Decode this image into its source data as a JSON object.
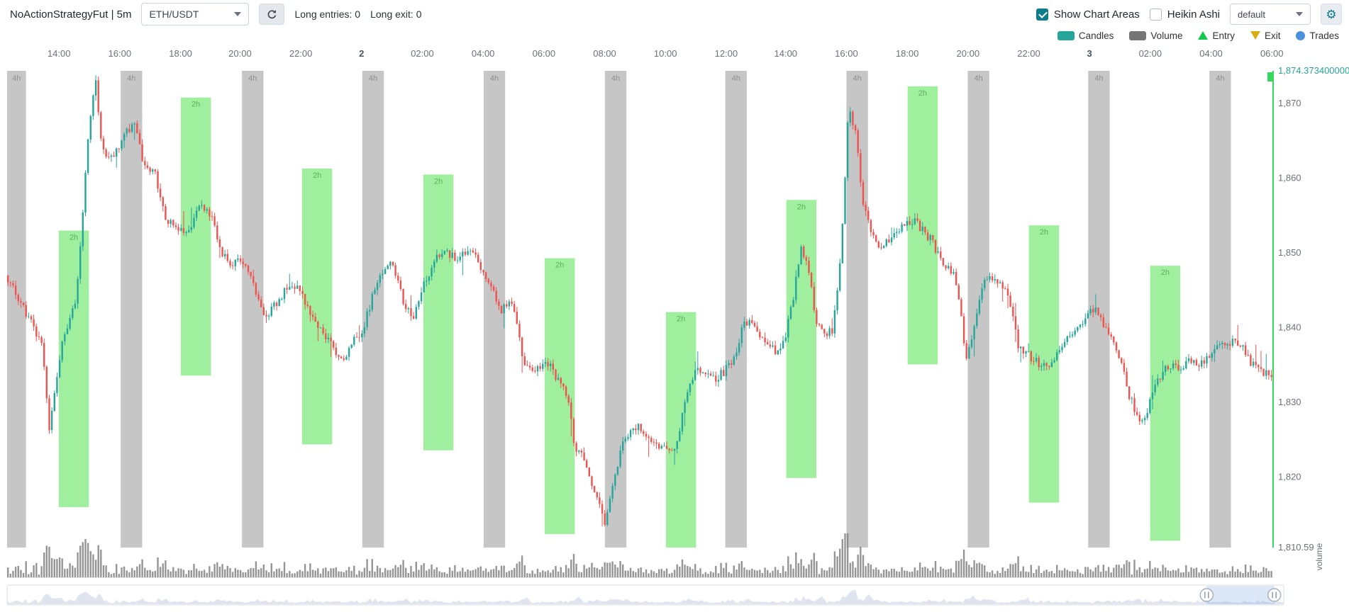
{
  "header": {
    "title": "NoActionStrategyFut | 5m",
    "pair_select": {
      "value": "ETH/USDT"
    },
    "long_entries": "Long entries: 0",
    "long_exit": "Long exit: 0",
    "show_chart_areas": {
      "label": "Show Chart Areas",
      "checked": true
    },
    "heikin_ashi": {
      "label": "Heikin Ashi",
      "checked": false
    },
    "plot_config_select": {
      "value": "default"
    },
    "icons": {
      "gear": "⚙"
    }
  },
  "legend": {
    "items": [
      {
        "label": "Candles",
        "shape": "rect",
        "color": "#26a69a"
      },
      {
        "label": "Volume",
        "shape": "rect",
        "color": "#757575"
      },
      {
        "label": "Entry",
        "shape": "triangle-up",
        "color": "#12c94c"
      },
      {
        "label": "Exit",
        "shape": "triangle-down",
        "color": "#d9ae13"
      },
      {
        "label": "Trades",
        "shape": "circle",
        "color": "#4b8fdd"
      }
    ]
  },
  "volume_axis_label": "volume",
  "datazoom": {
    "start_f": 0.9396,
    "end_f": 0.9926,
    "handle_icon": "pause-icon"
  },
  "chart_data": {
    "type": "candlestick",
    "pair": "ETH/USDT",
    "timeframe": "5m",
    "y_max": 1874.3734,
    "y_min": 1810.59,
    "num_candles": 490,
    "seed": 7,
    "candle_up_color": "#26a69a",
    "candle_down_color": "#ef5350",
    "volume_color": "#828282",
    "accent_price_color": "#26a69a",
    "last_price_line_color": "#35d95e",
    "x_ticks": [
      {
        "label": "14:00",
        "f": 0.041
      },
      {
        "label": "16:00",
        "f": 0.089
      },
      {
        "label": "18:00",
        "f": 0.137
      },
      {
        "label": "20:00",
        "f": 0.184
      },
      {
        "label": "22:00",
        "f": 0.232
      },
      {
        "label": "2",
        "f": 0.28,
        "bold": true
      },
      {
        "label": "02:00",
        "f": 0.328
      },
      {
        "label": "04:00",
        "f": 0.376
      },
      {
        "label": "06:00",
        "f": 0.424
      },
      {
        "label": "08:00",
        "f": 0.472
      },
      {
        "label": "10:00",
        "f": 0.52
      },
      {
        "label": "12:00",
        "f": 0.568
      },
      {
        "label": "14:00",
        "f": 0.615
      },
      {
        "label": "16:00",
        "f": 0.663
      },
      {
        "label": "18:00",
        "f": 0.711
      },
      {
        "label": "20:00",
        "f": 0.759
      },
      {
        "label": "22:00",
        "f": 0.807
      },
      {
        "label": "3",
        "f": 0.855,
        "bold": true
      },
      {
        "label": "02:00",
        "f": 0.903
      },
      {
        "label": "04:00",
        "f": 0.951
      },
      {
        "label": "06:00",
        "f": 0.999
      }
    ],
    "y_ticks": [
      {
        "label": "1,874.373400000",
        "price": 1874.3734,
        "accent": true
      },
      {
        "label": "1,870",
        "price": 1870
      },
      {
        "label": "1,860",
        "price": 1860
      },
      {
        "label": "1,850",
        "price": 1850
      },
      {
        "label": "1,840",
        "price": 1840
      },
      {
        "label": "1,830",
        "price": 1830
      },
      {
        "label": "1,820",
        "price": 1820
      },
      {
        "label": "1,810.59",
        "price": 1810.59
      }
    ],
    "areas_4h": {
      "label": "4h",
      "color": "rgba(128,128,128,0.45)",
      "label_color": "#8f8f8f",
      "width_f": 0.017,
      "first_width_f": 0.0149,
      "starts_f": [
        0,
        0.0897,
        0.1855,
        0.2806,
        0.3764,
        0.4722,
        0.5673,
        0.663,
        0.7588,
        0.8539,
        0.9497
      ]
    },
    "areas_2h": {
      "label": "2h",
      "color": "rgba(80,225,80,0.55)",
      "label_color": "#5fae5f",
      "width_f": 0.0238,
      "bands": [
        {
          "f": 0.0408,
          "high": 1853.0,
          "low": 1816.0
        },
        {
          "f": 0.1372,
          "high": 1870.8,
          "low": 1833.6
        },
        {
          "f": 0.233,
          "high": 1861.3,
          "low": 1824.4
        },
        {
          "f": 0.3288,
          "high": 1860.5,
          "low": 1823.6
        },
        {
          "f": 0.4246,
          "high": 1849.3,
          "low": 1812.4
        },
        {
          "f": 0.5204,
          "high": 1842.1,
          "low": 1810.6
        },
        {
          "f": 0.6155,
          "high": 1857.1,
          "low": 1819.9
        },
        {
          "f": 0.7113,
          "high": 1872.3,
          "low": 1835.1
        },
        {
          "f": 0.8071,
          "high": 1853.7,
          "low": 1816.6
        },
        {
          "f": 0.9029,
          "high": 1848.3,
          "low": 1811.5
        }
      ]
    },
    "keypoints": [
      [
        0.001,
        1847.0
      ],
      [
        0.029,
        1837.8
      ],
      [
        0.035,
        1826.3
      ],
      [
        0.046,
        1839.0
      ],
      [
        0.056,
        1843.6
      ],
      [
        0.066,
        1866.6
      ],
      [
        0.071,
        1873.5
      ],
      [
        0.076,
        1864.3
      ],
      [
        0.083,
        1862.5
      ],
      [
        0.093,
        1865.4
      ],
      [
        0.102,
        1867.7
      ],
      [
        0.11,
        1861.4
      ],
      [
        0.118,
        1860.8
      ],
      [
        0.127,
        1854.5
      ],
      [
        0.137,
        1852.8
      ],
      [
        0.145,
        1853.3
      ],
      [
        0.154,
        1856.8
      ],
      [
        0.161,
        1855.6
      ],
      [
        0.17,
        1850.5
      ],
      [
        0.178,
        1848.2
      ],
      [
        0.186,
        1849.3
      ],
      [
        0.195,
        1845.9
      ],
      [
        0.205,
        1841.3
      ],
      [
        0.215,
        1843.6
      ],
      [
        0.226,
        1845.9
      ],
      [
        0.234,
        1844.7
      ],
      [
        0.243,
        1841.3
      ],
      [
        0.251,
        1839.5
      ],
      [
        0.26,
        1836.7
      ],
      [
        0.266,
        1835.5
      ],
      [
        0.274,
        1837.8
      ],
      [
        0.283,
        1840.1
      ],
      [
        0.293,
        1845.9
      ],
      [
        0.304,
        1849.3
      ],
      [
        0.314,
        1843.6
      ],
      [
        0.322,
        1841.3
      ],
      [
        0.331,
        1845.9
      ],
      [
        0.34,
        1849.3
      ],
      [
        0.348,
        1849.9
      ],
      [
        0.358,
        1849.3
      ],
      [
        0.367,
        1850.5
      ],
      [
        0.375,
        1848.2
      ],
      [
        0.383,
        1845.9
      ],
      [
        0.392,
        1842.4
      ],
      [
        0.401,
        1843.6
      ],
      [
        0.409,
        1835.5
      ],
      [
        0.419,
        1834.4
      ],
      [
        0.428,
        1835.5
      ],
      [
        0.436,
        1833.2
      ],
      [
        0.444,
        1830.9
      ],
      [
        0.45,
        1824.0
      ],
      [
        0.457,
        1822.9
      ],
      [
        0.463,
        1819.4
      ],
      [
        0.47,
        1816.0
      ],
      [
        0.474,
        1813.7
      ],
      [
        0.48,
        1819.4
      ],
      [
        0.487,
        1824.0
      ],
      [
        0.494,
        1826.3
      ],
      [
        0.501,
        1826.9
      ],
      [
        0.507,
        1825.2
      ],
      [
        0.514,
        1824.0
      ],
      [
        0.521,
        1824.0
      ],
      [
        0.528,
        1822.9
      ],
      [
        0.535,
        1828.6
      ],
      [
        0.541,
        1833.2
      ],
      [
        0.548,
        1834.4
      ],
      [
        0.555,
        1833.8
      ],
      [
        0.562,
        1833.2
      ],
      [
        0.569,
        1834.4
      ],
      [
        0.575,
        1835.5
      ],
      [
        0.582,
        1840.1
      ],
      [
        0.589,
        1841.3
      ],
      [
        0.596,
        1839.0
      ],
      [
        0.603,
        1837.8
      ],
      [
        0.609,
        1836.7
      ],
      [
        0.616,
        1839.0
      ],
      [
        0.623,
        1844.7
      ],
      [
        0.628,
        1850.5
      ],
      [
        0.633,
        1849.3
      ],
      [
        0.64,
        1841.3
      ],
      [
        0.647,
        1839.0
      ],
      [
        0.653,
        1839.5
      ],
      [
        0.66,
        1849.3
      ],
      [
        0.666,
        1870.0
      ],
      [
        0.671,
        1866.6
      ],
      [
        0.677,
        1857.4
      ],
      [
        0.684,
        1852.8
      ],
      [
        0.691,
        1850.5
      ],
      [
        0.698,
        1851.6
      ],
      [
        0.704,
        1852.8
      ],
      [
        0.711,
        1853.9
      ],
      [
        0.718,
        1854.5
      ],
      [
        0.725,
        1852.8
      ],
      [
        0.732,
        1851.6
      ],
      [
        0.738,
        1849.3
      ],
      [
        0.745,
        1848.2
      ],
      [
        0.752,
        1845.9
      ],
      [
        0.759,
        1835.5
      ],
      [
        0.766,
        1841.3
      ],
      [
        0.772,
        1845.9
      ],
      [
        0.779,
        1847.0
      ],
      [
        0.786,
        1845.9
      ],
      [
        0.793,
        1843.6
      ],
      [
        0.8,
        1837.8
      ],
      [
        0.806,
        1836.7
      ],
      [
        0.813,
        1835.5
      ],
      [
        0.82,
        1834.9
      ],
      [
        0.827,
        1835.5
      ],
      [
        0.834,
        1837.8
      ],
      [
        0.84,
        1839.0
      ],
      [
        0.847,
        1840.1
      ],
      [
        0.854,
        1841.8
      ],
      [
        0.861,
        1842.4
      ],
      [
        0.867,
        1840.7
      ],
      [
        0.874,
        1839.0
      ],
      [
        0.881,
        1835.5
      ],
      [
        0.888,
        1830.9
      ],
      [
        0.895,
        1827.5
      ],
      [
        0.901,
        1828.6
      ],
      [
        0.908,
        1832.1
      ],
      [
        0.915,
        1834.4
      ],
      [
        0.922,
        1834.9
      ],
      [
        0.929,
        1834.4
      ],
      [
        0.935,
        1835.5
      ],
      [
        0.942,
        1834.9
      ],
      [
        0.949,
        1836.1
      ],
      [
        0.956,
        1837.2
      ],
      [
        0.963,
        1837.8
      ],
      [
        0.97,
        1838.4
      ],
      [
        0.976,
        1837.8
      ],
      [
        0.983,
        1835.5
      ],
      [
        0.99,
        1834.4
      ],
      [
        0.998,
        1833.8
      ]
    ]
  }
}
